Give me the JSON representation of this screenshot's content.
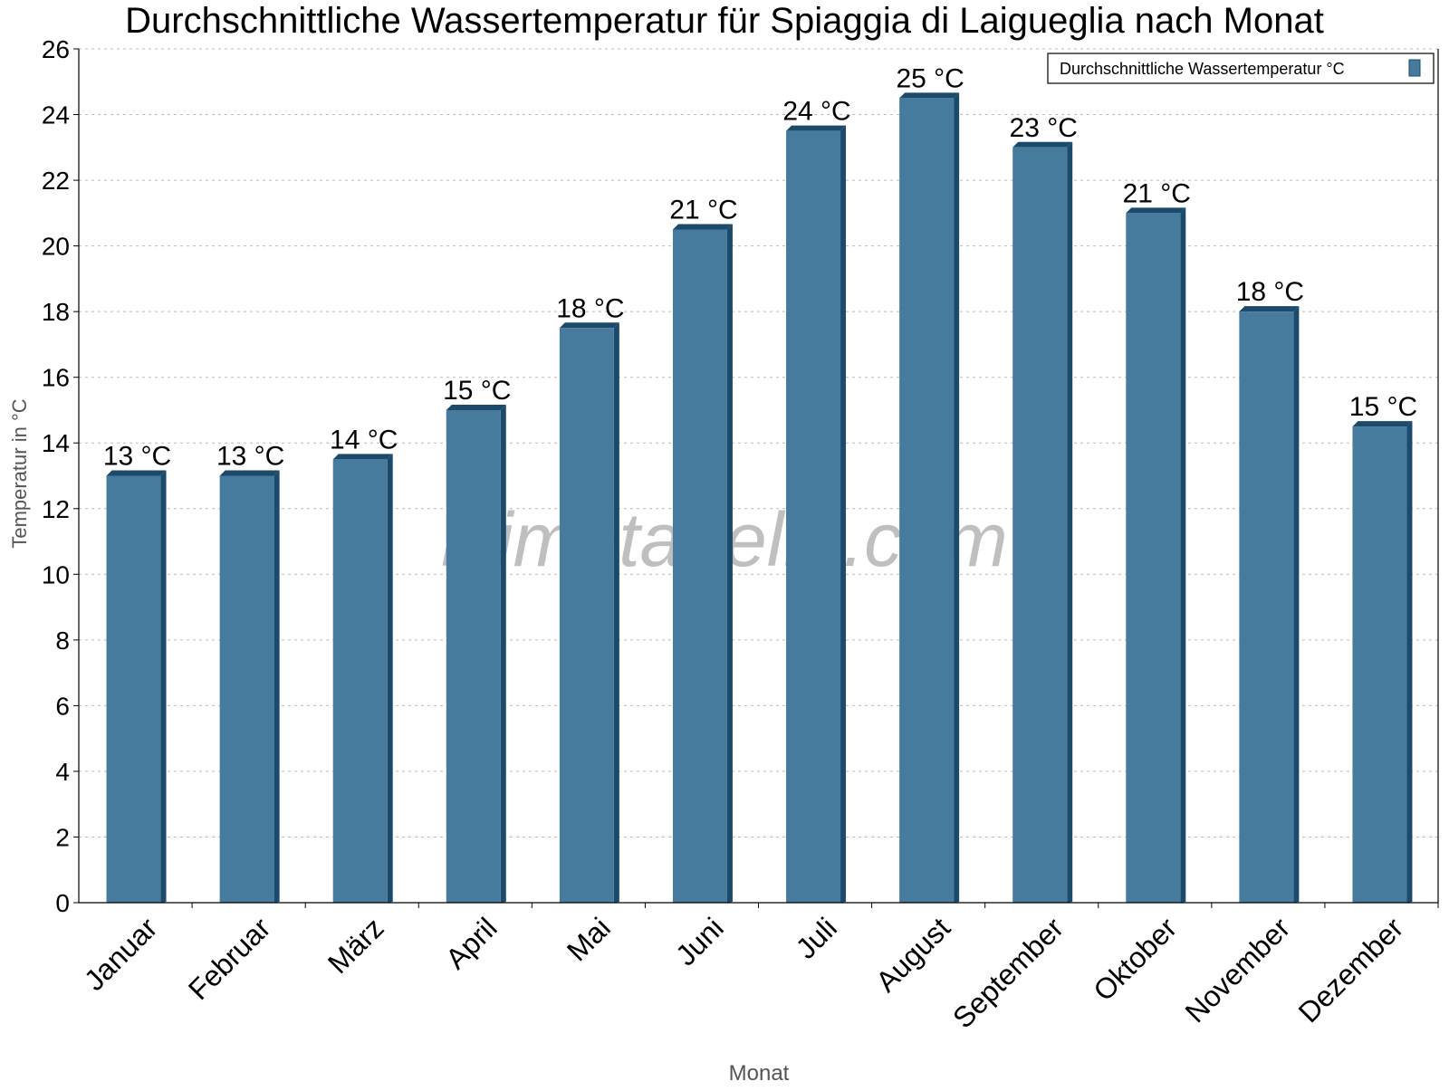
{
  "chart_data": {
    "type": "bar",
    "title": "Durchschnittliche Wassertemperatur für Spiaggia di Laigueglia nach Monat",
    "xlabel": "Monat",
    "ylabel": "Temperatur in °C",
    "ylim": [
      0,
      26
    ],
    "yticks": [
      0,
      2,
      4,
      6,
      8,
      10,
      12,
      14,
      16,
      18,
      20,
      22,
      24,
      26
    ],
    "grid": true,
    "legend_position": "top-right",
    "watermark": "klimatabelle.com",
    "categories": [
      "Januar",
      "Februar",
      "März",
      "April",
      "Mai",
      "Juni",
      "Juli",
      "August",
      "September",
      "Oktober",
      "November",
      "Dezember"
    ],
    "series": [
      {
        "name": "Durchschnittliche Wassertemperatur °C",
        "color": "#467b9d",
        "side_color": "#1b4a6b",
        "values": [
          13,
          13,
          13.5,
          15,
          17.5,
          20.5,
          23.5,
          24.5,
          23,
          21,
          18,
          14.5
        ],
        "labels": [
          "13 °C",
          "13 °C",
          "14 °C",
          "15 °C",
          "18 °C",
          "21 °C",
          "24 °C",
          "25 °C",
          "23 °C",
          "21 °C",
          "18 °C",
          "15 °C"
        ]
      }
    ]
  }
}
